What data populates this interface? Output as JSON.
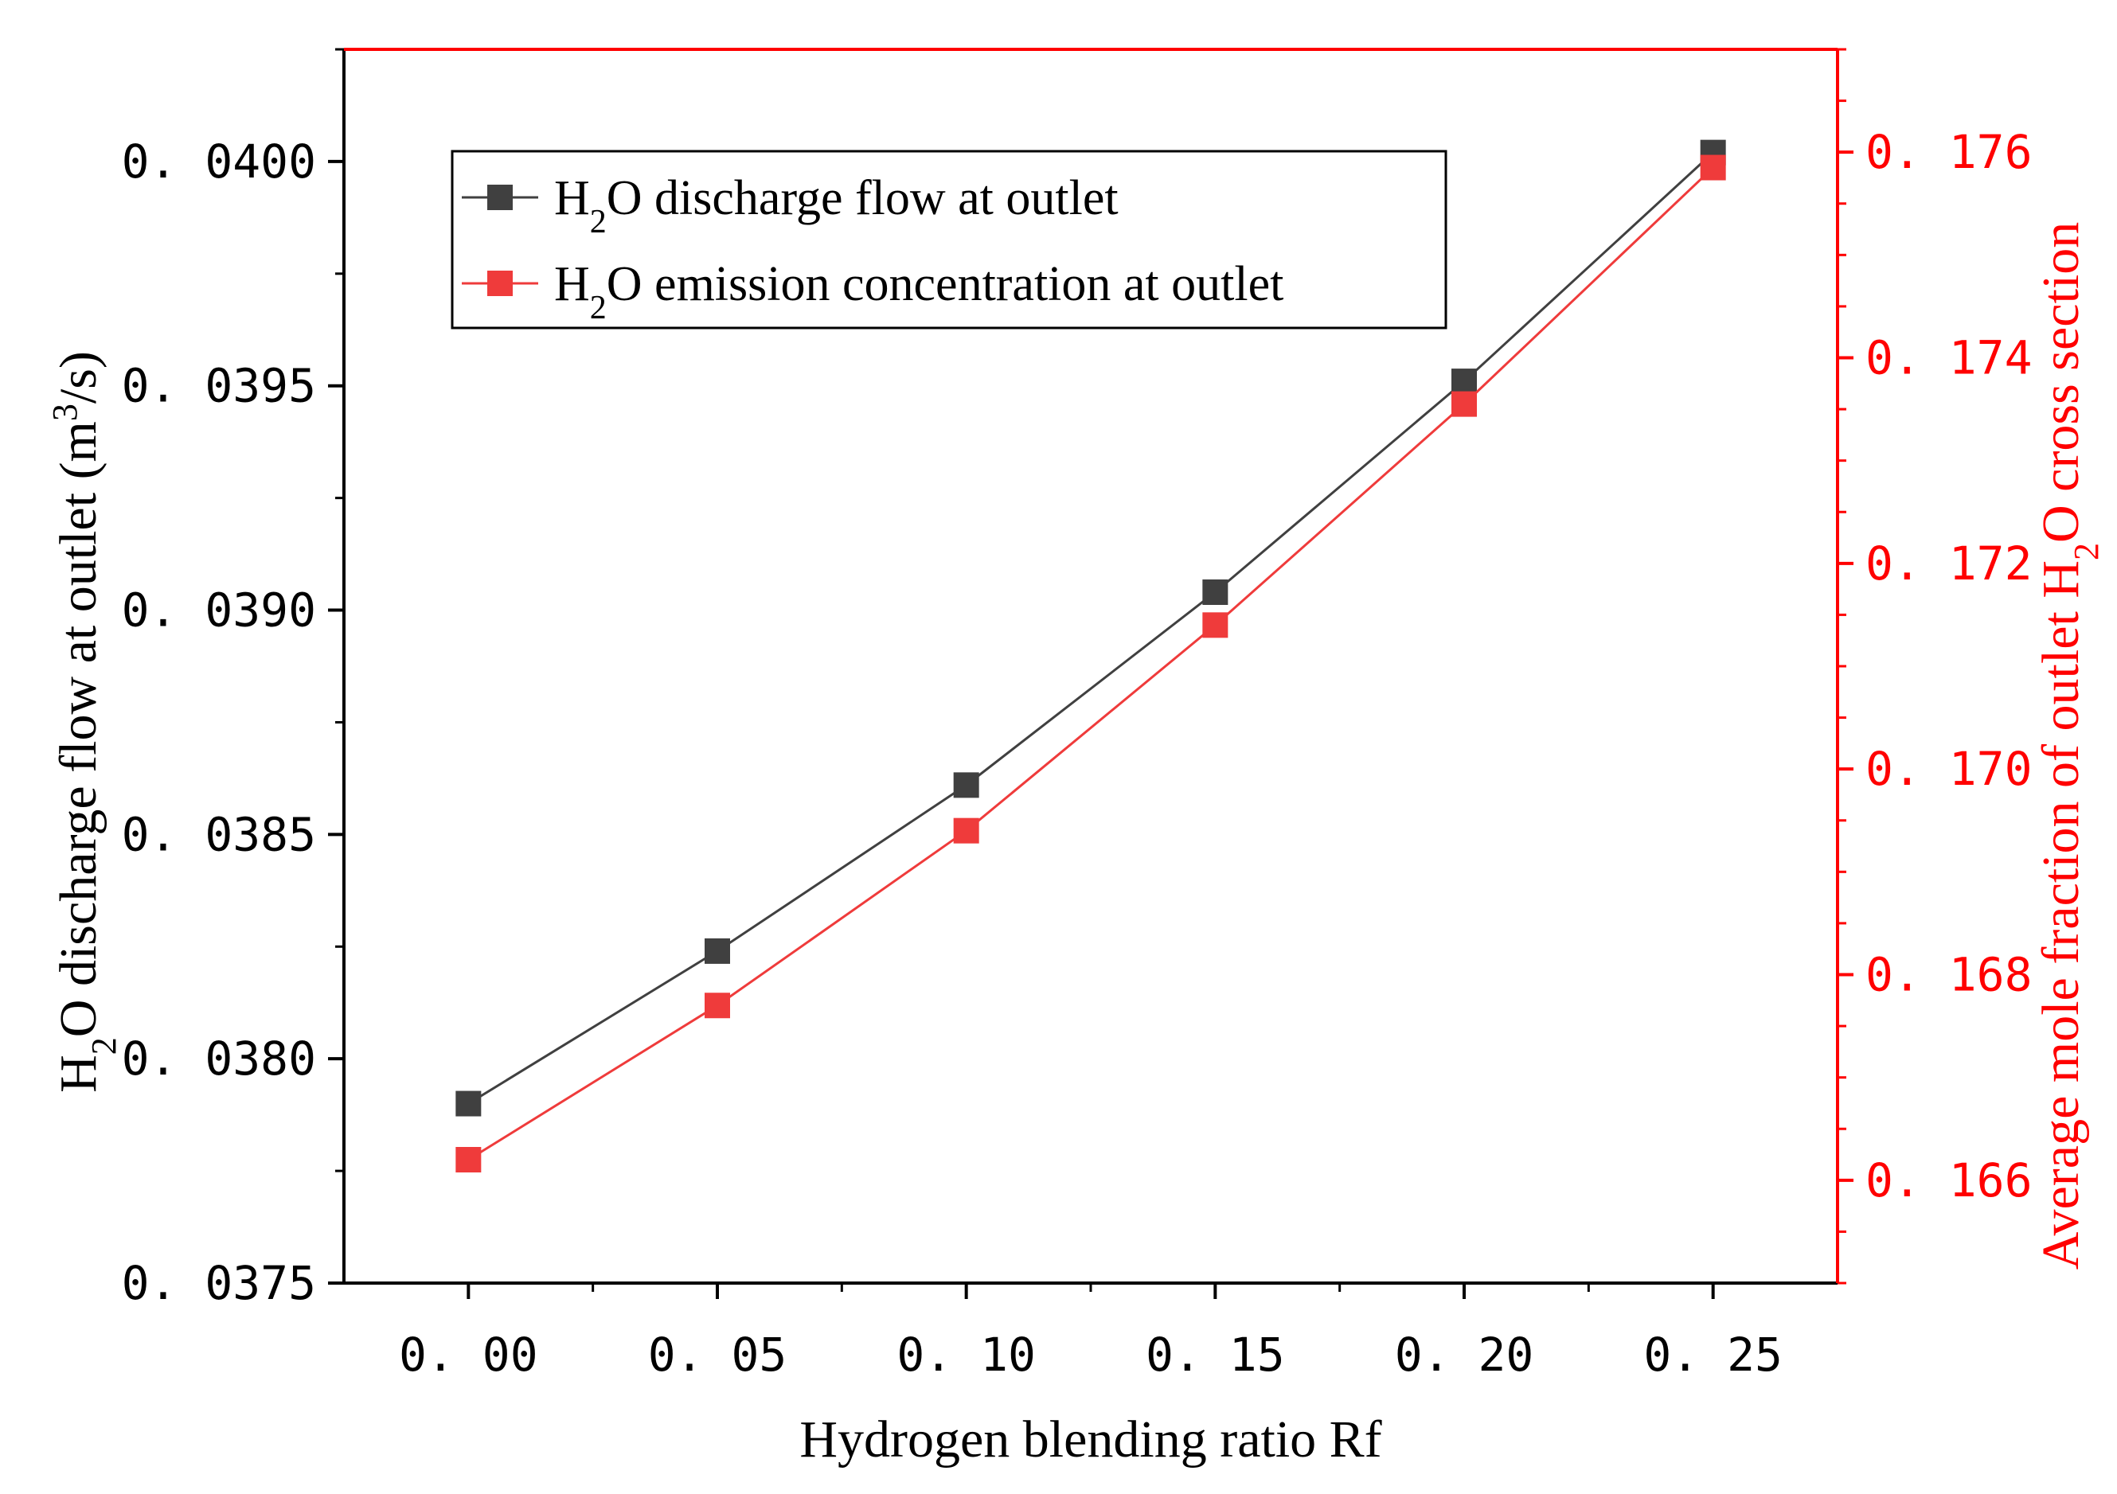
{
  "chart_data": {
    "type": "line",
    "x": [
      0.0,
      0.05,
      0.1,
      0.15,
      0.2,
      0.25
    ],
    "xlabel": "Hydrogen blending ratio Rf",
    "xlim": [
      -0.025,
      0.275
    ],
    "x_tick_labels": [
      "0. 00",
      "0. 05",
      "0. 10",
      "0. 15",
      "0. 20",
      "0. 25"
    ],
    "ylabel_left": {
      "prefix": "H",
      "sub": "2",
      "mid": "O discharge flow at outlet (m",
      "sup": "3",
      "suffix": "/s)"
    },
    "ylim_left": [
      0.0375,
      0.04025
    ],
    "y_left_tick_labels": [
      "0. 0375",
      "0. 0380",
      "0. 0385",
      "0. 0390",
      "0. 0395",
      "0. 0400"
    ],
    "ylabel_right": {
      "prefix": "Average mole fraction of outlet H",
      "sub": "2",
      "suffix": "O cross section"
    },
    "ylim_right": [
      0.165,
      0.177
    ],
    "y_right_tick_labels": [
      "0. 166",
      "0. 168",
      "0. 170",
      "0. 172",
      "0. 174",
      "0. 176"
    ],
    "grid": false,
    "legend_position": "top-left",
    "series": [
      {
        "name": "H2O discharge flow at outlet",
        "legend_label": {
          "prefix": "H",
          "sub": "2",
          "suffix": "O discharge flow at outlet"
        },
        "axis": "left",
        "color": "#404040",
        "marker": "square",
        "values": [
          0.0379,
          0.03824,
          0.03861,
          0.03904,
          0.03951,
          0.04002
        ]
      },
      {
        "name": "H2O emission concentration at outlet",
        "legend_label": {
          "prefix": "H",
          "sub": "2",
          "suffix": "O emission concentration at outlet"
        },
        "axis": "right",
        "color": "#ef3b3b",
        "marker": "square",
        "values": [
          0.1662,
          0.1677,
          0.1694,
          0.1714,
          0.17355,
          0.17585
        ]
      }
    ]
  },
  "colors": {
    "left_axis": "#000000",
    "right_axis": "#ff0000",
    "background": "#ffffff"
  }
}
